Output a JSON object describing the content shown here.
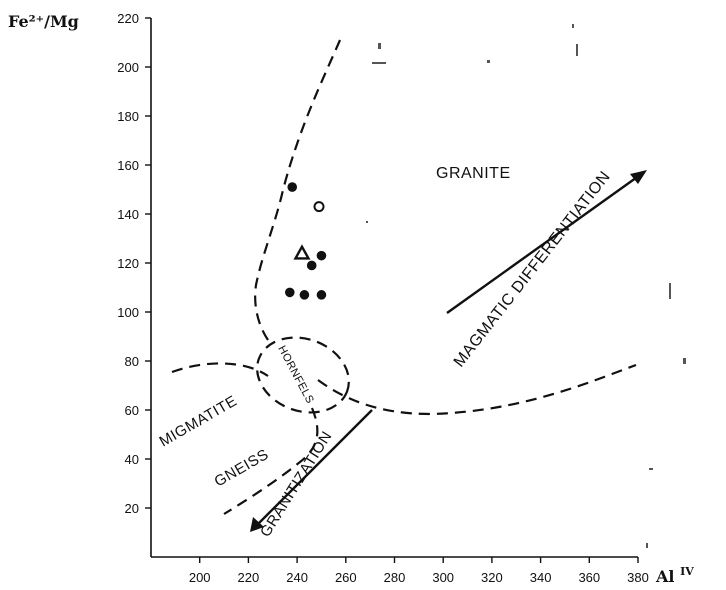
{
  "chart_data": {
    "type": "scatter",
    "xlabel": "Al",
    "xlabel_sup": "IV",
    "ylabel": "Fe²⁺/Mg",
    "xlim": [
      180,
      380
    ],
    "ylim": [
      0,
      220
    ],
    "x_ticks": [
      "200",
      "220",
      "240",
      "260",
      "280",
      "300",
      "320",
      "340",
      "360",
      "380"
    ],
    "y_ticks": [
      "20",
      "40",
      "60",
      "80",
      "100",
      "120",
      "140",
      "160",
      "180",
      "200",
      "220"
    ],
    "series": [
      {
        "marker": "filled-circle",
        "points": [
          {
            "x": 238,
            "y": 151
          },
          {
            "x": 250,
            "y": 123
          },
          {
            "x": 246,
            "y": 119
          },
          {
            "x": 237,
            "y": 108
          },
          {
            "x": 243,
            "y": 107
          },
          {
            "x": 250,
            "y": 107
          }
        ]
      },
      {
        "marker": "open-circle",
        "points": [
          {
            "x": 249,
            "y": 143
          }
        ]
      },
      {
        "marker": "triangle",
        "points": [
          {
            "x": 242,
            "y": 124
          }
        ]
      }
    ],
    "region_labels": [
      "GRANITE",
      "MIGMATITE",
      "GNEISS",
      "HORNFELS"
    ],
    "arrow_labels": [
      "MAGMATIC DIFFERENTIATION",
      "GRANITIZATION"
    ],
    "grid": false
  }
}
